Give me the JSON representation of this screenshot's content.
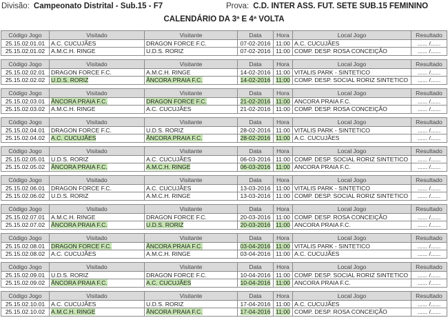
{
  "header": {
    "division_label": "Divisão:",
    "division": "Campeonato Distrital - Sub.15 - F7",
    "prova_label": "Prova:",
    "prova": "C.D. INTER ASS. FUT. SETE SUB.15 FEMININO",
    "subtitle": "CALENDÁRIO DA 3ª E 4ª VOLTA"
  },
  "columns": [
    "Código Jogo",
    "Visitado",
    "Visitante",
    "Data",
    "Hora",
    "Local Jogo",
    "Resultado"
  ],
  "highlight_color": "#c7e6b3",
  "blocks": [
    {
      "rows": [
        {
          "code": "25.15.02.01.01",
          "home": "A.C. CUCUJÃES",
          "away": "DRAGON FORCE F.C.",
          "date": "07-02-2016",
          "time": "11:00",
          "venue": "A.C. CUCUJÃES",
          "result": "...... /......",
          "highlight": false
        },
        {
          "code": "25.15.02.01.02",
          "home": "A.M.C.H. RINGE",
          "away": "U.D.S. RORIZ",
          "date": "07-02-2016",
          "time": "11:00",
          "venue": "COMP. DESP. ROSA CONCEIÇÃO",
          "result": "...... /......",
          "highlight": false
        }
      ]
    },
    {
      "rows": [
        {
          "code": "25.15.02.02.01",
          "home": "DRAGON FORCE F.C.",
          "away": "A.M.C.H. RINGE",
          "date": "14-02-2016",
          "time": "11:00",
          "venue": "VITALIS PARK - SINTETICO",
          "result": "...... /......",
          "highlight": false
        },
        {
          "code": "25.15.02.02.02",
          "home": "U.D.S. RORIZ",
          "away": "ÂNCORA PRAIA F.C.",
          "date": "14-02-2016",
          "time": "11:00",
          "venue": "COMP. DESP. SOCIAL RORIZ SINTETICO",
          "result": "...... /......",
          "highlight": true
        }
      ]
    },
    {
      "rows": [
        {
          "code": "25.15.02.03.01",
          "home": "ÂNCORA PRAIA F.C.",
          "away": "DRAGON FORCE F.C.",
          "date": "21-02-2016",
          "time": "11:00",
          "venue": "ANCORA PRAIA F.C.",
          "result": "...... /......",
          "highlight": true
        },
        {
          "code": "25.15.02.03.02",
          "home": "A.M.C.H. RINGE",
          "away": "A.C. CUCUJÃES",
          "date": "21-02-2016",
          "time": "11:00",
          "venue": "COMP. DESP. ROSA CONCEIÇÃO",
          "result": "...... /......",
          "highlight": false
        }
      ]
    },
    {
      "rows": [
        {
          "code": "25.15.02.04.01",
          "home": "DRAGON FORCE F.C.",
          "away": "U.D.S. RORIZ",
          "date": "28-02-2016",
          "time": "11:00",
          "venue": "VITALIS PARK - SINTETICO",
          "result": "...... /......",
          "highlight": false
        },
        {
          "code": "25.15.02.04.02",
          "home": "A.C. CUCUJÃES",
          "away": "ÂNCORA PRAIA F.C.",
          "date": "28-02-2016",
          "time": "11:00",
          "venue": "A.C. CUCUJÃES",
          "result": "...... /......",
          "highlight": true
        }
      ]
    },
    {
      "rows": [
        {
          "code": "25.15.02.05.01",
          "home": "U.D.S. RORIZ",
          "away": "A.C. CUCUJÃES",
          "date": "06-03-2016",
          "time": "11:00",
          "venue": "COMP. DESP. SOCIAL RORIZ SINTETICO",
          "result": "...... /......",
          "highlight": false
        },
        {
          "code": "25.15.02.05.02",
          "home": "ÂNCORA PRAIA F.C.",
          "away": "A.M.C.H. RINGE",
          "date": "06-03-2016",
          "time": "11:00",
          "venue": "ANCORA PRAIA F.C.",
          "result": "...... /......",
          "highlight": true
        }
      ]
    },
    {
      "rows": [
        {
          "code": "25.15.02.06.01",
          "home": "DRAGON FORCE F.C.",
          "away": "A.C. CUCUJÃES",
          "date": "13-03-2016",
          "time": "11:00",
          "venue": "VITALIS PARK - SINTETICO",
          "result": "...... /......",
          "highlight": false
        },
        {
          "code": "25.15.02.06.02",
          "home": "U.D.S. RORIZ",
          "away": "A.M.C.H. RINGE",
          "date": "13-03-2016",
          "time": "11:00",
          "venue": "COMP. DESP. SOCIAL RORIZ SINTETICO",
          "result": "...... /......",
          "highlight": false
        }
      ]
    },
    {
      "rows": [
        {
          "code": "25.15.02.07.01",
          "home": "A.M.C.H. RINGE",
          "away": "DRAGON FORCE F.C.",
          "date": "20-03-2016",
          "time": "11:00",
          "venue": "COMP. DESP. ROSA CONCEIÇÃO",
          "result": "...... /......",
          "highlight": false
        },
        {
          "code": "25.15.02.07.02",
          "home": "ÂNCORA PRAIA F.C.",
          "away": "U.D.S. RORIZ",
          "date": "20-03-2016",
          "time": "11:00",
          "venue": "ANCORA PRAIA F.C.",
          "result": "...... /......",
          "highlight": true
        }
      ]
    },
    {
      "rows": [
        {
          "code": "25.15.02.08.01",
          "home": "DRAGON FORCE F.C.",
          "away": "ÂNCORA PRAIA F.C.",
          "date": "03-04-2016",
          "time": "11:00",
          "venue": "VITALIS PARK - SINTETICO",
          "result": "...... /......",
          "highlight": true
        },
        {
          "code": "25.15.02.08.02",
          "home": "A.C. CUCUJÃES",
          "away": "A.M.C.H. RINGE",
          "date": "03-04-2016",
          "time": "11:00",
          "venue": "A.C. CUCUJÃES",
          "result": "...... /......",
          "highlight": false
        }
      ]
    },
    {
      "rows": [
        {
          "code": "25.15.02.09.01",
          "home": "U.D.S. RORIZ",
          "away": "DRAGON FORCE F.C.",
          "date": "10-04-2016",
          "time": "11:00",
          "venue": "COMP. DESP. SOCIAL RORIZ SINTETICO",
          "result": "...... /......",
          "highlight": false
        },
        {
          "code": "25.15.02.09.02",
          "home": "ÂNCORA PRAIA F.C.",
          "away": "A.C. CUCUJÃES",
          "date": "10-04-2016",
          "time": "11:00",
          "venue": "ANCORA PRAIA F.C.",
          "result": "...... /......",
          "highlight": true
        }
      ]
    },
    {
      "rows": [
        {
          "code": "25.15.02.10.01",
          "home": "A.C. CUCUJÃES",
          "away": "U.D.S. RORIZ",
          "date": "17-04-2016",
          "time": "11:00",
          "venue": "A.C. CUCUJÃES",
          "result": "...... /......",
          "highlight": false
        },
        {
          "code": "25.15.02.10.02",
          "home": "A.M.C.H. RINGE",
          "away": "ÂNCORA PRAIA F.C.",
          "date": "17-04-2016",
          "time": "11:00",
          "venue": "COMP. DESP. ROSA CONCEIÇÃO",
          "result": "...... /......",
          "highlight": true
        }
      ]
    }
  ]
}
